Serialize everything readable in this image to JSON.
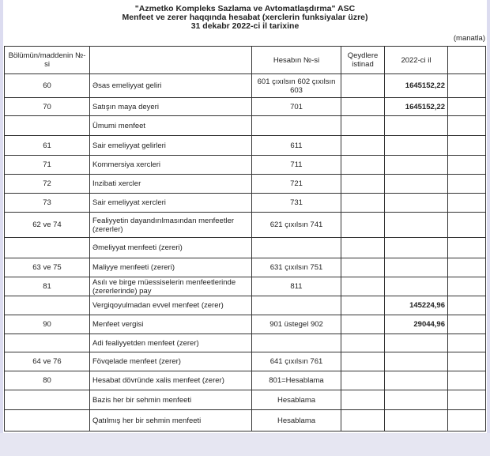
{
  "header": {
    "company": "\"Azmetko Kompleks Sazlama ve Avtomatlaşdırma\" ASC",
    "report_title": "Menfeet ve zerer haqqında hesabat (xerclerin funksiyalar üzre)",
    "date": "31 dekabr 2022-ci il tarixine",
    "unit": "(manatla)"
  },
  "table": {
    "columns": [
      "Bölümün/maddenin №-si",
      "",
      "Hesabın №-si",
      "Qeydlere istinad",
      "2022-ci il",
      ""
    ],
    "rows": [
      {
        "no": "60",
        "name": "Əsas emeliyyat geliri",
        "account": "601 çıxılsın 602 çıxılsın 603",
        "note": "",
        "value": "1645152,22",
        "extra": ""
      },
      {
        "no": "70",
        "name": "Satışın maya deyeri",
        "account": "701",
        "note": "",
        "value": "1645152,22",
        "extra": ""
      },
      {
        "no": "",
        "name": "Ümumi menfeet",
        "account": "",
        "note": "",
        "value": "",
        "extra": ""
      },
      {
        "no": "61",
        "name": "Sair emeliyyat gelirleri",
        "account": "611",
        "note": "",
        "value": "",
        "extra": ""
      },
      {
        "no": "71",
        "name": "Kommersiya xercleri",
        "account": "711",
        "note": "",
        "value": "",
        "extra": ""
      },
      {
        "no": "72",
        "name": "Inzibati xercler",
        "account": "721",
        "note": "",
        "value": "",
        "extra": ""
      },
      {
        "no": "73",
        "name": "Sair emeliyyat xercleri",
        "account": "731",
        "note": "",
        "value": "",
        "extra": ""
      },
      {
        "no": "62 ve 74",
        "name": "Fealiyyetin dayandırılmasından menfeetler (zererler)",
        "account": "621 çıxılsın 741",
        "note": "",
        "value": "",
        "extra": ""
      },
      {
        "no": "",
        "name": "Əmeliyyat menfeeti (zereri)",
        "account": "",
        "note": "",
        "value": "",
        "extra": ""
      },
      {
        "no": "63 ve 75",
        "name": "Maliyye menfeeti (zereri)",
        "account": "631 çıxılsın 751",
        "note": "",
        "value": "",
        "extra": ""
      },
      {
        "no": "81",
        "name": "Asılı ve birge müessiselerin menfeetlerinde (zererlerinde) pay",
        "account": "811",
        "note": "",
        "value": "",
        "extra": ""
      },
      {
        "no": "",
        "name": "Vergiqoyulmadan evvel menfeet (zerer)",
        "account": "",
        "note": "",
        "value": "145224,96",
        "extra": ""
      },
      {
        "no": "90",
        "name": "Menfeet vergisi",
        "account": "901 üstegel 902",
        "note": "",
        "value": "29044,96",
        "extra": ""
      },
      {
        "no": "",
        "name": "Adi fealiyyetden menfeet (zerer)",
        "account": "",
        "note": "",
        "value": "",
        "extra": ""
      },
      {
        "no": "64 ve 76",
        "name": "Fövqelade menfeet (zerer)",
        "account": "641 çıxılsın 761",
        "note": "",
        "value": "",
        "extra": ""
      },
      {
        "no": "80",
        "name": "Hesabat dövründe xalis menfeet (zerer)",
        "account": "801=Hesablama",
        "note": "",
        "value": "",
        "extra": ""
      },
      {
        "no": "",
        "name": "Bazis her bir sehmin menfeeti",
        "account": "Hesablama",
        "note": "",
        "value": "",
        "extra": ""
      },
      {
        "no": "",
        "name": "Qatılmış her bir sehmin menfeeti",
        "account": "Hesablama",
        "note": "",
        "value": "",
        "extra": ""
      }
    ]
  }
}
